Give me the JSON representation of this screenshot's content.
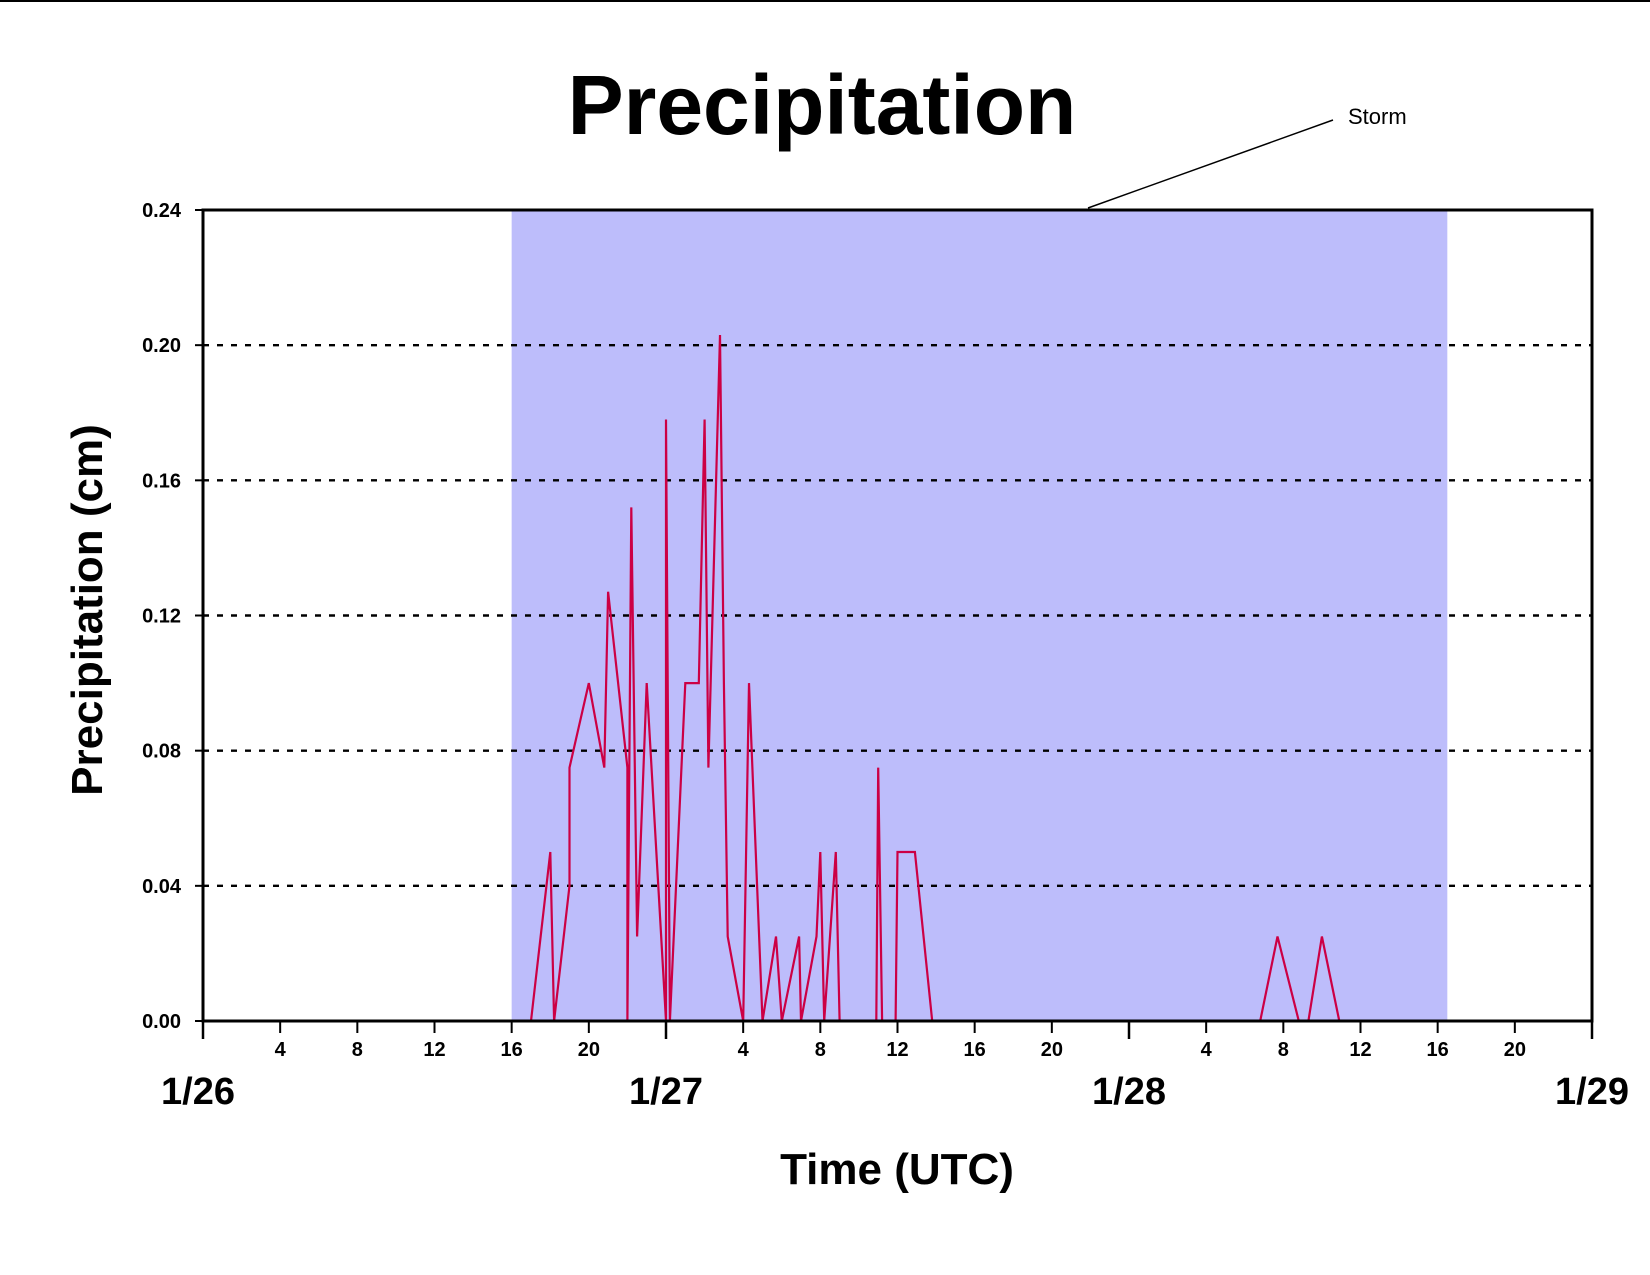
{
  "chart_data": {
    "type": "line",
    "title": "Precipitation",
    "xlabel": "Time (UTC)",
    "ylabel": "Precipitation (cm)",
    "ylim": [
      0,
      0.24
    ],
    "yticks": [
      "0.00",
      "0.04",
      "0.08",
      "0.12",
      "0.16",
      "0.20",
      "0.24"
    ],
    "xlim_hours": [
      0,
      72
    ],
    "xlim": [
      "1/26 00",
      "1/29 00"
    ],
    "x_unit": "hours UTC",
    "hour_ticks": [
      {
        "h": 4,
        "label": "4"
      },
      {
        "h": 8,
        "label": "8"
      },
      {
        "h": 12,
        "label": "12"
      },
      {
        "h": 16,
        "label": "16"
      },
      {
        "h": 20,
        "label": "20"
      },
      {
        "h": 28,
        "label": "4"
      },
      {
        "h": 32,
        "label": "8"
      },
      {
        "h": 36,
        "label": "12"
      },
      {
        "h": 40,
        "label": "16"
      },
      {
        "h": 44,
        "label": "20"
      },
      {
        "h": 52,
        "label": "4"
      },
      {
        "h": 56,
        "label": "8"
      },
      {
        "h": 60,
        "label": "12"
      },
      {
        "h": 64,
        "label": "16"
      },
      {
        "h": 68,
        "label": "20"
      }
    ],
    "day_ticks": [
      {
        "h": 0,
        "label": "1/26"
      },
      {
        "h": 24,
        "label": "1/27"
      },
      {
        "h": 48,
        "label": "1/28"
      },
      {
        "h": 72,
        "label": "1/29"
      }
    ],
    "grid": "horizontal dotted",
    "line_color": "#cc0044",
    "shade_color": "#bdbdfb",
    "storm": {
      "label": "Storm",
      "start_hour": 16,
      "end_hour": 64.5
    },
    "series": [
      {
        "x": [
          0,
          17,
          18,
          18.2,
          19,
          19,
          20,
          20.8,
          21,
          22,
          22,
          22.2,
          22.5,
          23,
          24,
          24,
          24.2,
          25,
          25.7,
          26,
          26.2,
          26.8,
          27,
          27.2,
          28,
          28.3,
          29,
          29.7,
          30,
          30.9,
          31,
          31.8,
          32,
          32.2,
          32.8,
          33,
          33.1,
          34,
          34.9,
          35,
          35.2,
          35.9,
          36,
          36.9,
          37.8,
          40,
          54.8,
          55.7,
          56.8,
          57.3,
          58,
          58.9,
          72
        ],
        "values": [
          0,
          0,
          0.05,
          0,
          0.04,
          0.075,
          0.1,
          0.075,
          0.127,
          0.075,
          0,
          0.152,
          0.025,
          0.1,
          0,
          0.178,
          0,
          0.1,
          0.1,
          0.178,
          0.075,
          0.203,
          0.1,
          0.025,
          0,
          0.1,
          0,
          0.025,
          0,
          0.025,
          0,
          0.025,
          0.05,
          0,
          0.05,
          0,
          0,
          0,
          0,
          0.075,
          0,
          0,
          0.05,
          0.05,
          0,
          0,
          0,
          0.025,
          0,
          0,
          0.025,
          0,
          0
        ]
      }
    ]
  }
}
